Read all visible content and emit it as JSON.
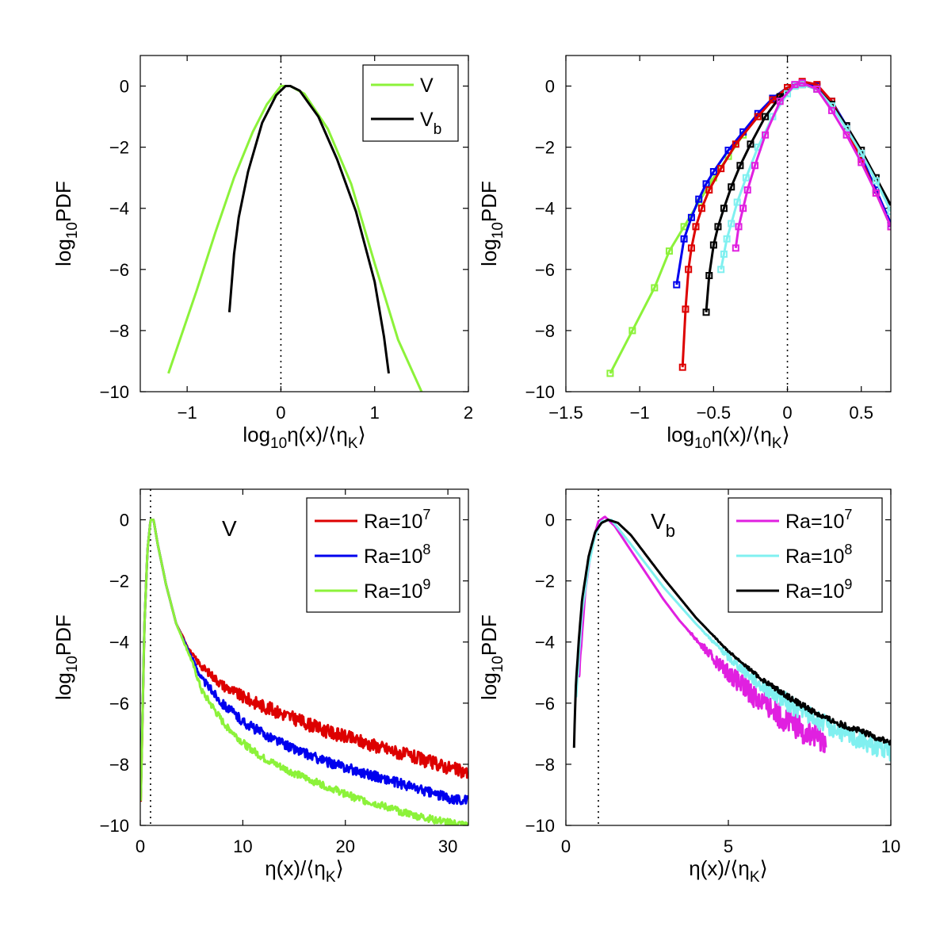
{
  "chart_data": [
    {
      "type": "line",
      "panel": "top-left",
      "xlabel": "log10η(x)/⟨ηK⟩",
      "ylabel": "log10PDF",
      "xlim": [
        -1.5,
        2
      ],
      "ylim": [
        -10,
        1
      ],
      "xticks": [
        -1,
        0,
        1,
        2
      ],
      "xtick_labels": [
        "−1",
        "0",
        "1",
        "2"
      ],
      "yticks": [
        0,
        -2,
        -4,
        -6,
        -8,
        -10
      ],
      "ytick_labels": [
        "0",
        "−2",
        "−4",
        "−6",
        "−8",
        "−10"
      ],
      "vline_x": 0,
      "legend_position": "top-right",
      "series": [
        {
          "name": "V",
          "sub": "",
          "color": "#8cf23a",
          "markers": false,
          "x": [
            -1.2,
            -0.9,
            -0.7,
            -0.5,
            -0.3,
            -0.15,
            0.0,
            0.1,
            0.25,
            0.5,
            0.75,
            1.0,
            1.25,
            1.5
          ],
          "y": [
            -9.4,
            -6.7,
            -4.8,
            -3.0,
            -1.5,
            -0.6,
            0.0,
            0.0,
            -0.25,
            -1.4,
            -3.2,
            -5.8,
            -8.3,
            -10.0
          ]
        },
        {
          "name": "V",
          "sub": "b",
          "color": "#000000",
          "markers": false,
          "x": [
            -0.55,
            -0.5,
            -0.45,
            -0.35,
            -0.2,
            -0.05,
            0.05,
            0.1,
            0.2,
            0.4,
            0.6,
            0.8,
            1.0,
            1.1,
            1.15
          ],
          "y": [
            -7.4,
            -5.5,
            -4.3,
            -2.8,
            -1.2,
            -0.3,
            0.0,
            0.0,
            -0.15,
            -1.0,
            -2.4,
            -4.1,
            -6.4,
            -8.2,
            -9.4
          ]
        }
      ]
    },
    {
      "type": "line",
      "panel": "top-right",
      "xlabel": "log10η(x)/⟨ηK⟩",
      "ylabel": "log10PDF",
      "xlim": [
        -1.5,
        0.7
      ],
      "ylim": [
        -10,
        1
      ],
      "xticks": [
        -1.5,
        -1,
        -0.5,
        0,
        0.5
      ],
      "xtick_labels": [
        "−1.5",
        "−1",
        "−0.5",
        "0",
        "0.5"
      ],
      "yticks": [
        0,
        -2,
        -4,
        -6,
        -8,
        -10
      ],
      "ytick_labels": [
        "0",
        "−2",
        "−4",
        "−6",
        "−8",
        "−10"
      ],
      "vline_x": 0,
      "series": [
        {
          "name": "Ra=10^9 (V)",
          "color": "#8cf23a",
          "markers": true,
          "x": [
            -1.2,
            -1.05,
            -0.9,
            -0.8,
            -0.7,
            -0.6,
            -0.5,
            -0.4,
            -0.3,
            -0.2,
            -0.1,
            0.0,
            0.1,
            0.2,
            0.3,
            0.4,
            0.5,
            0.6,
            0.7
          ],
          "y": [
            -9.4,
            -8.0,
            -6.6,
            -5.4,
            -4.6,
            -3.8,
            -3.0,
            -2.3,
            -1.6,
            -1.0,
            -0.4,
            -0.05,
            0.1,
            0.0,
            -0.5,
            -1.3,
            -2.3,
            -3.4,
            -4.5
          ]
        },
        {
          "name": "Ra=10^8 (V)",
          "color": "#0000ee",
          "markers": true,
          "x": [
            -0.75,
            -0.7,
            -0.65,
            -0.6,
            -0.55,
            -0.5,
            -0.4,
            -0.3,
            -0.2,
            -0.1,
            0.0,
            0.1,
            0.2,
            0.3,
            0.4,
            0.5,
            0.6,
            0.7
          ],
          "y": [
            -6.5,
            -5.0,
            -4.3,
            -3.7,
            -3.2,
            -2.8,
            -2.1,
            -1.5,
            -0.9,
            -0.4,
            -0.05,
            0.1,
            0.0,
            -0.5,
            -1.3,
            -2.3,
            -3.4,
            -4.5
          ]
        },
        {
          "name": "Ra=10^7 (V)",
          "color": "#dd0000",
          "markers": true,
          "x": [
            -0.71,
            -0.69,
            -0.67,
            -0.65,
            -0.62,
            -0.58,
            -0.53,
            -0.45,
            -0.35,
            -0.2,
            -0.1,
            0.0,
            0.1,
            0.2,
            0.3,
            0.4,
            0.5,
            0.6,
            0.7
          ],
          "y": [
            -9.2,
            -7.3,
            -6.0,
            -5.3,
            -4.6,
            -4.0,
            -3.4,
            -2.7,
            -1.9,
            -1.0,
            -0.45,
            -0.05,
            0.15,
            0.05,
            -0.5,
            -1.4,
            -2.4,
            -3.5,
            -4.6
          ]
        },
        {
          "name": "Ra=10^9 (Vb)",
          "color": "#000000",
          "markers": true,
          "x": [
            -0.55,
            -0.53,
            -0.5,
            -0.47,
            -0.43,
            -0.38,
            -0.32,
            -0.25,
            -0.15,
            -0.05,
            0.05,
            0.1,
            0.2,
            0.3,
            0.4,
            0.5,
            0.6,
            0.7
          ],
          "y": [
            -7.4,
            -6.2,
            -5.2,
            -4.6,
            -4.0,
            -3.3,
            -2.6,
            -1.9,
            -1.0,
            -0.35,
            0.0,
            0.05,
            -0.1,
            -0.6,
            -1.3,
            -2.1,
            -3.0,
            -3.9
          ]
        },
        {
          "name": "Ra=10^8 (Vb)",
          "color": "#80f0f0",
          "markers": true,
          "x": [
            -0.45,
            -0.43,
            -0.41,
            -0.38,
            -0.34,
            -0.28,
            -0.2,
            -0.1,
            0.0,
            0.05,
            0.1,
            0.2,
            0.3,
            0.4,
            0.5,
            0.6,
            0.7
          ],
          "y": [
            -6.0,
            -5.5,
            -5.0,
            -4.5,
            -3.8,
            -3.0,
            -2.0,
            -1.0,
            -0.25,
            0.0,
            0.05,
            -0.1,
            -0.65,
            -1.4,
            -2.2,
            -3.1,
            -4.1
          ]
        },
        {
          "name": "Ra=10^7 (Vb)",
          "color": "#e020e0",
          "markers": true,
          "x": [
            -0.35,
            -0.33,
            -0.3,
            -0.27,
            -0.22,
            -0.15,
            -0.05,
            0.05,
            0.1,
            0.2,
            0.3,
            0.4,
            0.5,
            0.6,
            0.7
          ],
          "y": [
            -5.3,
            -4.6,
            -4.0,
            -3.4,
            -2.6,
            -1.6,
            -0.5,
            0.05,
            0.1,
            -0.1,
            -0.8,
            -1.6,
            -2.5,
            -3.5,
            -4.6
          ]
        }
      ]
    },
    {
      "type": "line",
      "panel": "bottom-left",
      "xlabel": "η(x)/⟨ηK⟩",
      "ylabel": "log10PDF",
      "xlim": [
        0,
        32
      ],
      "ylim": [
        -10,
        1
      ],
      "xticks": [
        0,
        10,
        20,
        30
      ],
      "xtick_labels": [
        "0",
        "10",
        "20",
        "30"
      ],
      "yticks": [
        0,
        -2,
        -4,
        -6,
        -8,
        -10
      ],
      "ytick_labels": [
        "0",
        "−2",
        "−4",
        "−6",
        "−8",
        "−10"
      ],
      "vline_x": 1,
      "annotation": {
        "text": "V",
        "sub": ""
      },
      "legend_position": "top-right",
      "series": [
        {
          "name": "Ra=10",
          "sup": "7",
          "color": "#dd0000",
          "noise": 0.22,
          "x": [
            0.05,
            0.4,
            0.7,
            1.0,
            1.3,
            1.7,
            2.5,
            3.5,
            5.0,
            6.0,
            8.0,
            10.0,
            12.0,
            15.0,
            18.0,
            21.0,
            24.0,
            27.0,
            30.0,
            32.0
          ],
          "y": [
            -9.2,
            -3.5,
            -1.0,
            0.0,
            0.0,
            -0.8,
            -2.1,
            -3.4,
            -4.4,
            -4.8,
            -5.4,
            -5.8,
            -6.1,
            -6.5,
            -6.9,
            -7.2,
            -7.5,
            -7.8,
            -8.1,
            -8.3
          ]
        },
        {
          "name": "Ra=10",
          "sup": "8",
          "color": "#0000ee",
          "noise": 0.16,
          "x": [
            0.05,
            0.4,
            0.7,
            1.0,
            1.3,
            1.7,
            2.5,
            3.5,
            5.0,
            6.0,
            8.0,
            10.0,
            12.0,
            15.0,
            18.0,
            21.0,
            24.0,
            27.0,
            30.0,
            32.0
          ],
          "y": [
            -9.0,
            -3.5,
            -1.0,
            0.0,
            0.0,
            -0.8,
            -2.1,
            -3.4,
            -4.5,
            -5.2,
            -6.0,
            -6.6,
            -7.0,
            -7.5,
            -7.9,
            -8.2,
            -8.5,
            -8.8,
            -9.1,
            -9.2
          ]
        },
        {
          "name": "Ra=10",
          "sup": "9",
          "color": "#8cf23a",
          "noise": 0.12,
          "x": [
            0.05,
            0.4,
            0.7,
            1.0,
            1.3,
            1.7,
            2.5,
            3.5,
            5.0,
            6.0,
            8.0,
            10.0,
            12.0,
            15.0,
            18.0,
            21.0,
            24.0,
            27.0,
            30.0,
            32.0
          ],
          "y": [
            -9.3,
            -3.5,
            -1.0,
            0.0,
            0.0,
            -0.8,
            -2.1,
            -3.4,
            -4.6,
            -5.6,
            -6.6,
            -7.3,
            -7.8,
            -8.3,
            -8.7,
            -9.1,
            -9.4,
            -9.7,
            -9.9,
            -10.0
          ]
        }
      ]
    },
    {
      "type": "line",
      "panel": "bottom-right",
      "xlabel": "η(x)/⟨ηK⟩",
      "ylabel": "log10PDF",
      "xlim": [
        0,
        10
      ],
      "ylim": [
        -10,
        1
      ],
      "xticks": [
        0,
        5,
        10
      ],
      "xtick_labels": [
        "0",
        "5",
        "10"
      ],
      "yticks": [
        0,
        -2,
        -4,
        -6,
        -8,
        -10
      ],
      "ytick_labels": [
        "0",
        "−2",
        "−4",
        "−6",
        "−8",
        "−10"
      ],
      "vline_x": 1,
      "annotation": {
        "text": "V",
        "sub": "b"
      },
      "legend_position": "top-right",
      "series": [
        {
          "name": "Ra=10",
          "sup": "7",
          "color": "#e020e0",
          "noise": 0.45,
          "x": [
            0.4,
            0.5,
            0.6,
            0.8,
            1.0,
            1.2,
            1.5,
            2.0,
            2.5,
            3.0,
            3.5,
            4.0,
            4.5,
            5.0,
            5.5,
            6.0,
            6.5,
            7.0,
            7.5,
            8.0
          ],
          "y": [
            -5.3,
            -3.7,
            -2.3,
            -0.8,
            -0.05,
            0.1,
            -0.2,
            -1.0,
            -1.8,
            -2.6,
            -3.3,
            -3.9,
            -4.5,
            -5.0,
            -5.5,
            -5.9,
            -6.3,
            -6.7,
            -7.0,
            -7.2
          ]
        },
        {
          "name": "Ra=10",
          "sup": "8",
          "color": "#80f0f0",
          "noise": 0.3,
          "x": [
            0.3,
            0.4,
            0.5,
            0.7,
            0.9,
            1.1,
            1.4,
            2.0,
            2.5,
            3.0,
            4.0,
            5.0,
            6.0,
            7.0,
            8.0,
            9.0,
            10.0
          ],
          "y": [
            -6.0,
            -4.5,
            -3.0,
            -1.5,
            -0.5,
            -0.05,
            0.0,
            -0.8,
            -1.5,
            -2.2,
            -3.4,
            -4.5,
            -5.4,
            -6.1,
            -6.7,
            -7.2,
            -7.6
          ]
        },
        {
          "name": "Ra=10",
          "sup": "9",
          "color": "#000000",
          "noise": 0.1,
          "x": [
            0.25,
            0.3,
            0.4,
            0.5,
            0.7,
            0.9,
            1.1,
            1.3,
            1.6,
            2.0,
            2.5,
            3.0,
            4.0,
            5.0,
            6.0,
            7.0,
            8.0,
            9.0,
            10.0
          ],
          "y": [
            -7.4,
            -5.5,
            -3.9,
            -2.6,
            -1.2,
            -0.4,
            -0.1,
            0.0,
            -0.1,
            -0.5,
            -1.2,
            -1.9,
            -3.2,
            -4.3,
            -5.2,
            -5.9,
            -6.5,
            -6.9,
            -7.3
          ]
        }
      ]
    }
  ]
}
